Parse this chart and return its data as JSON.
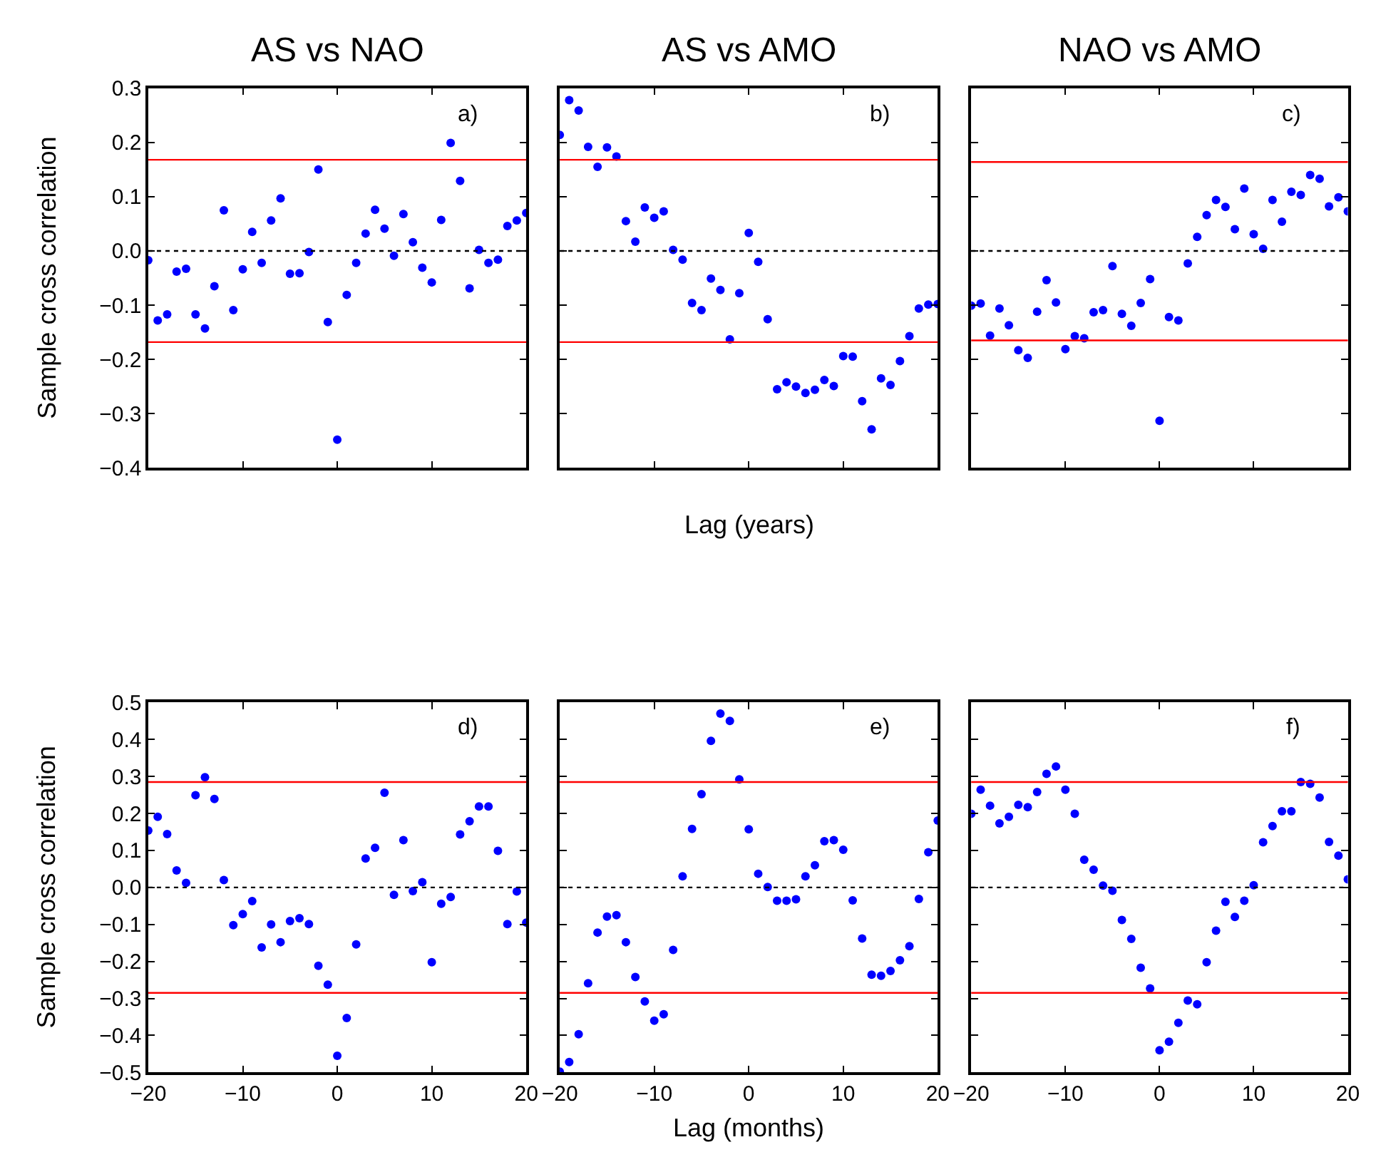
{
  "chart_data": [
    {
      "type": "scatter",
      "title": "AS vs NAO",
      "ylabel": "Sample cross correlation",
      "annotations": [
        "a)"
      ],
      "marker": "circle",
      "tick_labels": "y",
      "xlim": [
        -20,
        20
      ],
      "xticks": [
        {
          "value": -10,
          "label": null
        },
        {
          "value": 0,
          "label": null
        },
        {
          "value": 10,
          "label": null
        }
      ],
      "ylim": [
        -0.4,
        0.3
      ],
      "yticks": [
        {
          "value": -0.4,
          "label": "−0.4"
        },
        {
          "value": -0.3,
          "label": "−0.3"
        },
        {
          "value": -0.2,
          "label": "−0.2"
        },
        {
          "value": -0.1,
          "label": "−0.1"
        },
        {
          "value": 0,
          "label": "0.0"
        },
        0.1,
        0.2,
        0.3
      ],
      "ref_lines": [
        {
          "axis": "y",
          "value": 0.168,
          "color": "#ff0000",
          "line_style": "solid"
        },
        {
          "axis": "y",
          "value": -0.168,
          "color": "#ff0000",
          "line_style": "solid"
        },
        {
          "axis": "y",
          "value": 0,
          "color": "#000000",
          "line_style": "dotted"
        }
      ],
      "x": [
        -20,
        -19,
        -18,
        -17,
        -16,
        -15,
        -14,
        -13,
        -12,
        -11,
        -10,
        -9,
        -8,
        -7,
        -6,
        -5,
        -4,
        -3,
        -2,
        -1,
        0,
        1,
        2,
        3,
        4,
        5,
        6,
        7,
        8,
        9,
        10,
        11,
        12,
        13,
        14,
        15,
        16,
        17,
        18,
        19,
        20
      ],
      "series": [
        {
          "color": "#0000ff",
          "values": [
            -0.017,
            -0.128,
            -0.117,
            -0.038,
            -0.033,
            -0.117,
            -0.143,
            -0.065,
            0.075,
            -0.109,
            -0.034,
            0.035,
            -0.022,
            0.056,
            0.097,
            -0.042,
            -0.041,
            -0.002,
            0.15,
            -0.131,
            -0.348,
            -0.081,
            -0.022,
            0.032,
            0.076,
            0.041,
            -0.009,
            0.068,
            0.016,
            -0.031,
            -0.058,
            0.057,
            0.199,
            0.129,
            -0.069,
            0.002,
            -0.022,
            -0.016,
            0.046,
            0.056,
            0.07
          ]
        }
      ]
    },
    {
      "type": "scatter",
      "title": "AS vs AMO",
      "xlabel": "Lag (years)",
      "annotations": [
        "b)"
      ],
      "marker": "circle",
      "tick_labels": false,
      "xlim": [
        -20,
        20
      ],
      "xticks": [
        {
          "value": -10,
          "label": null
        },
        {
          "value": 0,
          "label": null
        },
        {
          "value": 10,
          "label": null
        }
      ],
      "ylim": [
        -0.4,
        0.3
      ],
      "yticks": [
        {
          "value": -0.4,
          "label": null
        },
        {
          "value": -0.3,
          "label": null
        },
        {
          "value": -0.2,
          "label": null
        },
        {
          "value": -0.1,
          "label": null
        },
        {
          "value": 0,
          "label": null
        },
        {
          "value": 0.1,
          "label": null
        },
        {
          "value": 0.2,
          "label": null
        },
        {
          "value": 0.3,
          "label": null
        }
      ],
      "ref_lines": [
        {
          "axis": "y",
          "value": 0.168,
          "color": "#ff0000",
          "line_style": "solid"
        },
        {
          "axis": "y",
          "value": -0.168,
          "color": "#ff0000",
          "line_style": "solid"
        },
        {
          "axis": "y",
          "value": 0,
          "color": "#000000",
          "line_style": "dotted"
        }
      ],
      "x": [
        -20,
        -19,
        -18,
        -17,
        -16,
        -15,
        -14,
        -13,
        -12,
        -11,
        -10,
        -9,
        -8,
        -7,
        -6,
        -5,
        -4,
        -3,
        -2,
        -1,
        0,
        1,
        2,
        3,
        4,
        5,
        6,
        7,
        8,
        9,
        10,
        11,
        12,
        13,
        14,
        15,
        16,
        17,
        18,
        19,
        20
      ],
      "series": [
        {
          "color": "#0000ff",
          "values": [
            0.214,
            0.278,
            0.259,
            0.192,
            0.155,
            0.191,
            0.174,
            0.055,
            0.017,
            0.08,
            0.061,
            0.073,
            0.002,
            -0.016,
            -0.096,
            -0.109,
            -0.051,
            -0.072,
            -0.163,
            -0.078,
            0.033,
            -0.02,
            -0.126,
            -0.255,
            -0.242,
            -0.25,
            -0.262,
            -0.256,
            -0.238,
            -0.249,
            -0.194,
            -0.195,
            -0.277,
            -0.329,
            -0.235,
            -0.247,
            -0.203,
            -0.157,
            -0.106,
            -0.099,
            -0.098
          ]
        }
      ]
    },
    {
      "type": "scatter",
      "title": "NAO vs AMO",
      "annotations": [
        "c)"
      ],
      "marker": "circle",
      "tick_labels": false,
      "xlim": [
        -20,
        20
      ],
      "xticks": [
        {
          "value": -10,
          "label": null
        },
        {
          "value": 0,
          "label": null
        },
        {
          "value": 10,
          "label": null
        }
      ],
      "ylim": [
        -0.4,
        0.3
      ],
      "yticks": [
        {
          "value": -0.4,
          "label": null
        },
        {
          "value": -0.3,
          "label": null
        },
        {
          "value": -0.2,
          "label": null
        },
        {
          "value": -0.1,
          "label": null
        },
        {
          "value": 0,
          "label": null
        },
        {
          "value": 0.1,
          "label": null
        },
        {
          "value": 0.2,
          "label": null
        },
        {
          "value": 0.3,
          "label": null
        }
      ],
      "ref_lines": [
        {
          "axis": "y",
          "value": 0.164,
          "color": "#ff0000",
          "line_style": "solid"
        },
        {
          "axis": "y",
          "value": -0.165,
          "color": "#ff0000",
          "line_style": "solid"
        },
        {
          "axis": "y",
          "value": 0,
          "color": "#000000",
          "line_style": "dotted"
        }
      ],
      "x": [
        -20,
        -19,
        -18,
        -17,
        -16,
        -15,
        -14,
        -13,
        -12,
        -11,
        -10,
        -9,
        -8,
        -7,
        -6,
        -5,
        -4,
        -3,
        -2,
        -1,
        0,
        1,
        2,
        3,
        4,
        5,
        6,
        7,
        8,
        9,
        10,
        11,
        12,
        13,
        14,
        15,
        16,
        17,
        18,
        19,
        20
      ],
      "series": [
        {
          "color": "#0000ff",
          "values": [
            -0.101,
            -0.097,
            -0.156,
            -0.106,
            -0.137,
            -0.183,
            -0.197,
            -0.112,
            -0.054,
            -0.095,
            -0.181,
            -0.157,
            -0.161,
            -0.113,
            -0.109,
            -0.028,
            -0.116,
            -0.138,
            -0.096,
            -0.052,
            -0.313,
            -0.122,
            -0.128,
            -0.023,
            0.026,
            0.066,
            0.094,
            0.081,
            0.04,
            0.115,
            0.031,
            0.004,
            0.094,
            0.054,
            0.109,
            0.103,
            0.14,
            0.133,
            0.082,
            0.099,
            0.073
          ]
        }
      ]
    },
    {
      "type": "scatter",
      "ylabel": "Sample cross correlation",
      "annotations": [
        "d)"
      ],
      "marker": "circle",
      "xlim": [
        -20,
        20
      ],
      "xticks": [
        {
          "value": -20,
          "label": "−20"
        },
        {
          "value": -10,
          "label": "−10"
        },
        0,
        10,
        20
      ],
      "ylim": [
        -0.5,
        0.5
      ],
      "yticks": [
        {
          "value": -0.5,
          "label": "−0.5"
        },
        {
          "value": -0.4,
          "label": "−0.4"
        },
        {
          "value": -0.3,
          "label": "−0.3"
        },
        {
          "value": -0.2,
          "label": "−0.2"
        },
        {
          "value": -0.1,
          "label": "−0.1"
        },
        {
          "value": 0,
          "label": "0.0"
        },
        0.1,
        0.2,
        0.3,
        0.4,
        0.5
      ],
      "ref_lines": [
        {
          "axis": "y",
          "value": 0.285,
          "color": "#ff0000",
          "line_style": "solid"
        },
        {
          "axis": "y",
          "value": -0.285,
          "color": "#ff0000",
          "line_style": "solid"
        },
        {
          "axis": "y",
          "value": 0,
          "color": "#000000",
          "line_style": "dotted"
        }
      ],
      "x": [
        -20,
        -19,
        -18,
        -17,
        -16,
        -15,
        -14,
        -13,
        -12,
        -11,
        -10,
        -9,
        -8,
        -7,
        -6,
        -5,
        -4,
        -3,
        -2,
        -1,
        0,
        1,
        2,
        3,
        4,
        5,
        6,
        7,
        8,
        9,
        10,
        11,
        12,
        13,
        14,
        15,
        16,
        17,
        18,
        19,
        20
      ],
      "series": [
        {
          "color": "#0000ff",
          "values": [
            0.154,
            0.191,
            0.144,
            0.046,
            0.012,
            0.249,
            0.298,
            0.239,
            0.02,
            -0.102,
            -0.072,
            -0.037,
            -0.162,
            -0.1,
            -0.148,
            -0.091,
            -0.083,
            -0.099,
            -0.212,
            -0.263,
            -0.455,
            -0.353,
            -0.154,
            0.078,
            0.107,
            0.256,
            -0.02,
            0.128,
            -0.01,
            0.014,
            -0.202,
            -0.044,
            -0.026,
            0.143,
            0.179,
            0.219,
            0.219,
            0.099,
            -0.099,
            -0.011,
            -0.095
          ]
        }
      ]
    },
    {
      "type": "scatter",
      "xlabel": "Lag (months)",
      "annotations": [
        "e)"
      ],
      "marker": "circle",
      "tick_labels": "x",
      "xlim": [
        -20,
        20
      ],
      "xticks": [
        {
          "value": -20,
          "label": "−20"
        },
        {
          "value": -10,
          "label": "−10"
        },
        0,
        10,
        20
      ],
      "ylim": [
        -0.5,
        0.5
      ],
      "yticks": [
        {
          "value": -0.5,
          "label": null
        },
        {
          "value": -0.4,
          "label": null
        },
        {
          "value": -0.3,
          "label": null
        },
        {
          "value": -0.2,
          "label": null
        },
        {
          "value": -0.1,
          "label": null
        },
        {
          "value": 0,
          "label": null
        },
        {
          "value": 0.1,
          "label": null
        },
        {
          "value": 0.2,
          "label": null
        },
        {
          "value": 0.3,
          "label": null
        },
        {
          "value": 0.4,
          "label": null
        },
        {
          "value": 0.5,
          "label": null
        }
      ],
      "ref_lines": [
        {
          "axis": "y",
          "value": 0.285,
          "color": "#ff0000",
          "line_style": "solid"
        },
        {
          "axis": "y",
          "value": -0.285,
          "color": "#ff0000",
          "line_style": "solid"
        },
        {
          "axis": "y",
          "value": 0,
          "color": "#000000",
          "line_style": "dotted"
        }
      ],
      "x": [
        -20,
        -19,
        -18,
        -17,
        -16,
        -15,
        -14,
        -13,
        -12,
        -11,
        -10,
        -9,
        -8,
        -7,
        -6,
        -5,
        -4,
        -3,
        -2,
        -1,
        0,
        1,
        2,
        3,
        4,
        5,
        6,
        7,
        8,
        9,
        10,
        11,
        12,
        13,
        14,
        15,
        16,
        17,
        18,
        19,
        20
      ],
      "series": [
        {
          "color": "#0000ff",
          "values": [
            -0.498,
            -0.472,
            -0.397,
            -0.259,
            -0.122,
            -0.079,
            -0.075,
            -0.148,
            -0.242,
            -0.308,
            -0.36,
            -0.343,
            -0.169,
            0.03,
            0.158,
            0.252,
            0.396,
            0.47,
            0.45,
            0.292,
            0.157,
            0.037,
            0.001,
            -0.036,
            -0.036,
            -0.032,
            0.03,
            0.06,
            0.125,
            0.128,
            0.102,
            -0.035,
            -0.138,
            -0.236,
            -0.239,
            -0.226,
            -0.197,
            -0.159,
            -0.031,
            0.095,
            0.181
          ]
        }
      ]
    },
    {
      "type": "scatter",
      "annotations": [
        "f)"
      ],
      "marker": "circle",
      "tick_labels": "x",
      "xlim": [
        -20,
        20
      ],
      "xticks": [
        {
          "value": -20,
          "label": "−20"
        },
        {
          "value": -10,
          "label": "−10"
        },
        0,
        10,
        20
      ],
      "ylim": [
        -0.5,
        0.5
      ],
      "yticks": [
        {
          "value": -0.5,
          "label": null
        },
        {
          "value": -0.4,
          "label": null
        },
        {
          "value": -0.3,
          "label": null
        },
        {
          "value": -0.2,
          "label": null
        },
        {
          "value": -0.1,
          "label": null
        },
        {
          "value": 0,
          "label": null
        },
        {
          "value": 0.1,
          "label": null
        },
        {
          "value": 0.2,
          "label": null
        },
        {
          "value": 0.3,
          "label": null
        },
        {
          "value": 0.4,
          "label": null
        },
        {
          "value": 0.5,
          "label": null
        }
      ],
      "ref_lines": [
        {
          "axis": "y",
          "value": 0.285,
          "color": "#ff0000",
          "line_style": "solid"
        },
        {
          "axis": "y",
          "value": -0.285,
          "color": "#ff0000",
          "line_style": "solid"
        },
        {
          "axis": "y",
          "value": 0,
          "color": "#000000",
          "line_style": "dotted"
        }
      ],
      "x": [
        -20,
        -19,
        -18,
        -17,
        -16,
        -15,
        -14,
        -13,
        -12,
        -11,
        -10,
        -9,
        -8,
        -7,
        -6,
        -5,
        -4,
        -3,
        -2,
        -1,
        0,
        1,
        2,
        3,
        4,
        5,
        6,
        7,
        8,
        9,
        10,
        11,
        12,
        13,
        14,
        15,
        16,
        17,
        18,
        19,
        20
      ],
      "series": [
        {
          "color": "#0000ff",
          "values": [
            0.199,
            0.264,
            0.221,
            0.173,
            0.191,
            0.223,
            0.217,
            0.258,
            0.307,
            0.327,
            0.264,
            0.199,
            0.075,
            0.048,
            0.005,
            -0.009,
            -0.088,
            -0.139,
            -0.217,
            -0.273,
            -0.44,
            -0.417,
            -0.366,
            -0.306,
            -0.316,
            -0.202,
            -0.117,
            -0.039,
            -0.08,
            -0.036,
            0.006,
            0.122,
            0.166,
            0.206,
            0.206,
            0.285,
            0.28,
            0.243,
            0.123,
            0.086,
            0.022
          ]
        }
      ]
    }
  ]
}
